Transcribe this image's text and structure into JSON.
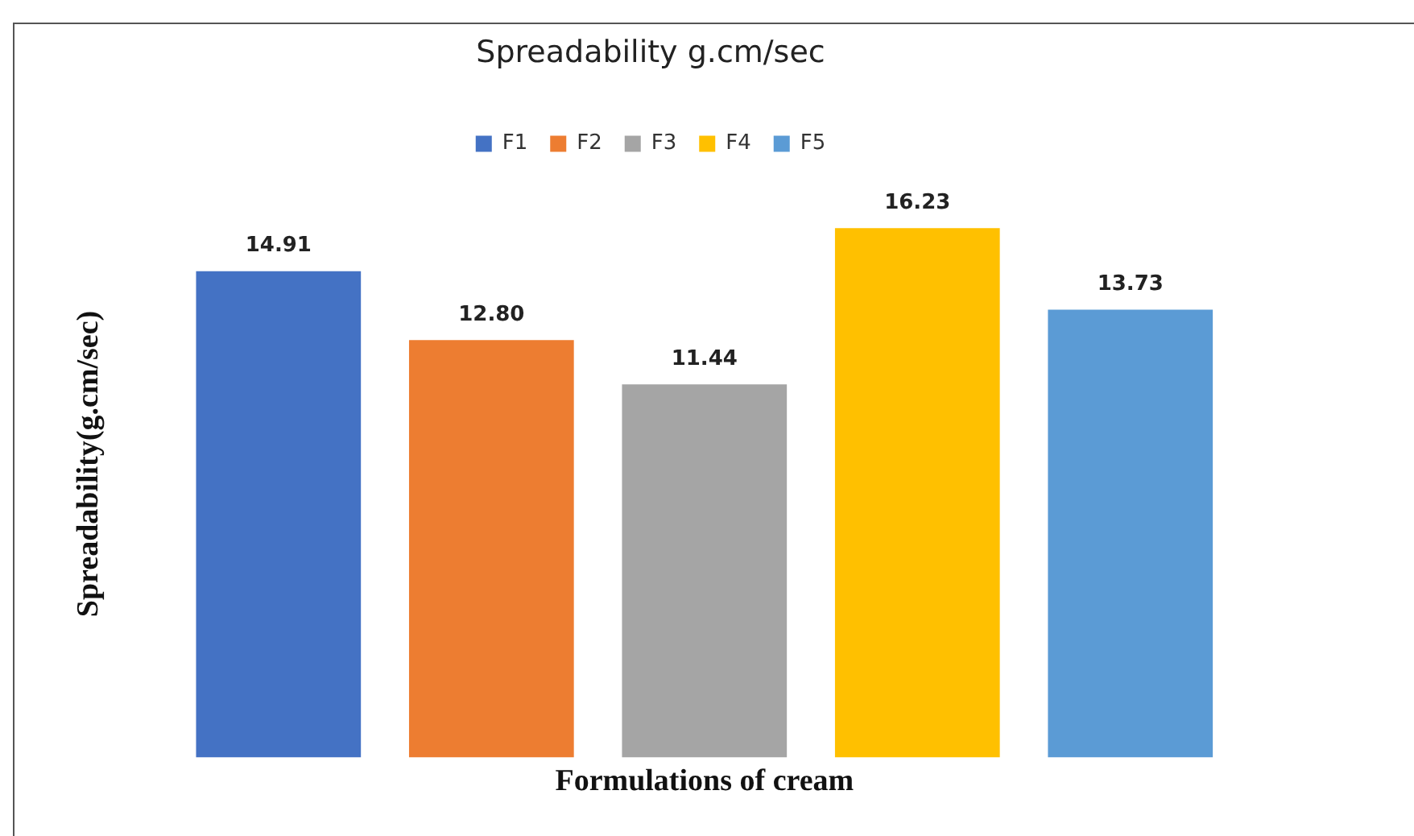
{
  "chart_data": {
    "type": "bar",
    "title": "Spreadability g.cm/sec",
    "xlabel": "Formulations of cream",
    "ylabel": "Spreadability(g.cm/sec)",
    "categories": [
      null,
      null,
      null,
      null,
      null
    ],
    "stacked": true,
    "series": [
      {
        "name": "F1",
        "color": "#4472c4",
        "values": [
          14.91,
          null,
          null,
          null,
          null
        ],
        "value_labels": [
          "14.91",
          null,
          null,
          null,
          null
        ]
      },
      {
        "name": "F2",
        "color": "#ed7d31",
        "values": [
          null,
          12.8,
          null,
          null,
          null
        ],
        "value_labels": [
          null,
          "12.80",
          null,
          null,
          null
        ]
      },
      {
        "name": "F3",
        "color": "#a5a5a5",
        "values": [
          null,
          null,
          11.44,
          null,
          null
        ],
        "value_labels": [
          null,
          null,
          "11.44",
          null,
          null
        ]
      },
      {
        "name": "F4",
        "color": "#ffc000",
        "values": [
          null,
          null,
          null,
          16.23,
          null
        ],
        "value_labels": [
          null,
          null,
          null,
          "16.23",
          null
        ]
      },
      {
        "name": "F5",
        "color": "#5b9bd5",
        "values": [
          null,
          null,
          null,
          null,
          13.73
        ],
        "value_labels": [
          null,
          null,
          null,
          null,
          "13.73"
        ]
      }
    ],
    "legend": "top",
    "grid": false,
    "tick_labels": false
  }
}
